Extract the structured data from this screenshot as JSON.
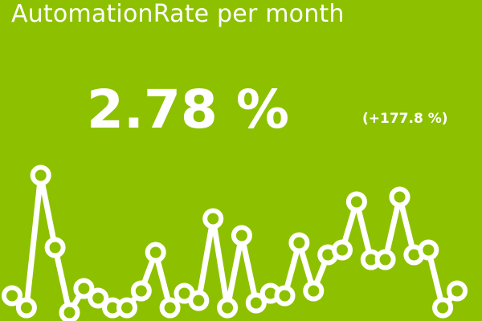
{
  "tile": {
    "title": "AutomationRate per month",
    "value": "2.78 %",
    "change": "(+177.8 %)"
  },
  "chart_data": {
    "type": "line",
    "values": [
      1.05,
      0.55,
      6.05,
      3.05,
      0.35,
      1.35,
      0.95,
      0.55,
      0.55,
      1.25,
      2.85,
      0.55,
      1.15,
      0.85,
      4.25,
      0.55,
      3.55,
      0.75,
      1.15,
      1.05,
      3.25,
      1.25,
      2.75,
      2.95,
      4.95,
      2.55,
      2.55,
      5.15,
      2.75,
      2.95,
      0.55,
      1.25
    ],
    "ylim": [
      0,
      7
    ],
    "grid": false,
    "line_color": "#ffffff",
    "marker_fill": "#8dc100"
  }
}
